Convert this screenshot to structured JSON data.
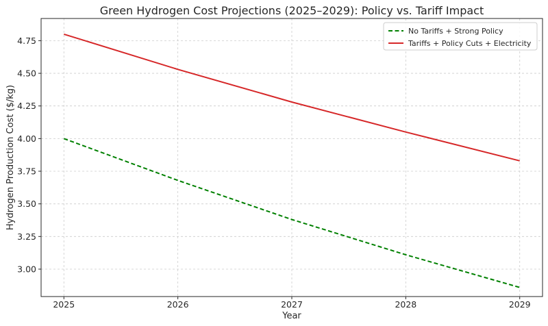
{
  "chart_data": {
    "type": "line",
    "title": "Green Hydrogen Cost Projections (2025–2029): Policy vs. Tariff Impact",
    "xlabel": "Year",
    "ylabel": "Hydrogen Production Cost ($/kg)",
    "x": [
      2025,
      2026,
      2027,
      2028,
      2029
    ],
    "x_tick_labels": [
      "2025",
      "2026",
      "2027",
      "2028",
      "2029"
    ],
    "xlim": [
      2024.8,
      2029.2
    ],
    "ylim": [
      2.79,
      4.92
    ],
    "y_ticks": [
      3.0,
      3.25,
      3.5,
      3.75,
      4.0,
      4.25,
      4.5,
      4.75
    ],
    "y_tick_labels": [
      "3.00",
      "3.25",
      "3.50",
      "3.75",
      "4.00",
      "4.25",
      "4.50",
      "4.75"
    ],
    "grid": true,
    "legend_position": "top-right",
    "series": [
      {
        "name": "No Tariffs + Strong Policy",
        "values": [
          4.0,
          3.68,
          3.38,
          3.11,
          2.86
        ],
        "color": "#008000",
        "style": "dashed"
      },
      {
        "name": "Tariffs + Policy Cuts + Electricity",
        "values": [
          4.8,
          4.53,
          4.28,
          4.05,
          3.83
        ],
        "color": "#d62728",
        "style": "solid"
      }
    ]
  }
}
